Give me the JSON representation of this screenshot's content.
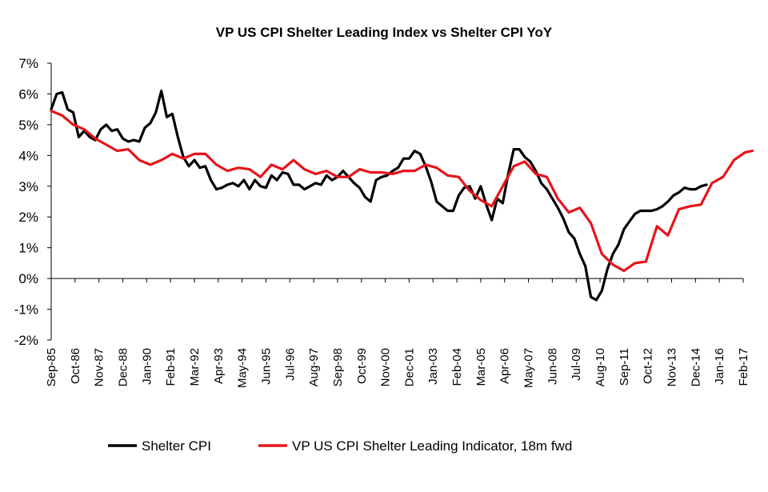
{
  "chart_data": {
    "type": "line",
    "title": "VP US CPI Shelter Leading Index vs Shelter CPI YoY",
    "xlabel": "",
    "ylabel": "",
    "ylim": [
      -2,
      7
    ],
    "y_unit": "%",
    "yticks": [
      "7%",
      "6%",
      "5%",
      "4%",
      "3%",
      "2%",
      "1%",
      "0%",
      "-1%",
      "-2%"
    ],
    "ytick_values": [
      7,
      6,
      5,
      4,
      3,
      2,
      1,
      0,
      -1,
      -2
    ],
    "x_start": "1985-09",
    "x_end": "2017-02",
    "xtick_labels": [
      "Sep-85",
      "Oct-86",
      "Nov-87",
      "Dec-88",
      "Jan-90",
      "Feb-91",
      "Mar-92",
      "Apr-93",
      "May-94",
      "Jun-95",
      "Jul-96",
      "Aug-97",
      "Sep-98",
      "Oct-99",
      "Nov-00",
      "Dec-01",
      "Jan-03",
      "Feb-04",
      "Mar-05",
      "Apr-06",
      "May-07",
      "Jun-08",
      "Jul-09",
      "Aug-10",
      "Sep-11",
      "Oct-12",
      "Nov-13",
      "Dec-14",
      "Jan-16",
      "Feb-17"
    ],
    "legend_placement": "bottom",
    "grid": false,
    "series": [
      {
        "name": "Shelter CPI",
        "color": "#000000",
        "points": [
          [
            "1985-09",
            5.5
          ],
          [
            "1985-12",
            6.0
          ],
          [
            "1986-03",
            6.05
          ],
          [
            "1986-06",
            5.5
          ],
          [
            "1986-09",
            5.4
          ],
          [
            "1986-12",
            4.6
          ],
          [
            "1987-03",
            4.8
          ],
          [
            "1987-06",
            4.6
          ],
          [
            "1987-09",
            4.5
          ],
          [
            "1987-12",
            4.85
          ],
          [
            "1988-03",
            5.0
          ],
          [
            "1988-06",
            4.8
          ],
          [
            "1988-09",
            4.85
          ],
          [
            "1988-12",
            4.55
          ],
          [
            "1989-03",
            4.45
          ],
          [
            "1989-06",
            4.5
          ],
          [
            "1989-09",
            4.45
          ],
          [
            "1989-12",
            4.9
          ],
          [
            "1990-03",
            5.05
          ],
          [
            "1990-06",
            5.4
          ],
          [
            "1990-09",
            6.1
          ],
          [
            "1990-12",
            5.25
          ],
          [
            "1991-03",
            5.35
          ],
          [
            "1991-06",
            4.6
          ],
          [
            "1991-09",
            3.95
          ],
          [
            "1991-12",
            3.65
          ],
          [
            "1992-03",
            3.85
          ],
          [
            "1992-06",
            3.6
          ],
          [
            "1992-09",
            3.65
          ],
          [
            "1992-12",
            3.2
          ],
          [
            "1993-03",
            2.9
          ],
          [
            "1993-06",
            2.95
          ],
          [
            "1993-09",
            3.05
          ],
          [
            "1993-12",
            3.1
          ],
          [
            "1994-03",
            3.0
          ],
          [
            "1994-06",
            3.2
          ],
          [
            "1994-09",
            2.9
          ],
          [
            "1994-12",
            3.2
          ],
          [
            "1995-03",
            3.0
          ],
          [
            "1995-06",
            2.95
          ],
          [
            "1995-09",
            3.35
          ],
          [
            "1995-12",
            3.2
          ],
          [
            "1996-03",
            3.45
          ],
          [
            "1996-06",
            3.4
          ],
          [
            "1996-09",
            3.05
          ],
          [
            "1996-12",
            3.05
          ],
          [
            "1997-03",
            2.9
          ],
          [
            "1997-06",
            3.0
          ],
          [
            "1997-09",
            3.1
          ],
          [
            "1997-12",
            3.05
          ],
          [
            "1998-03",
            3.35
          ],
          [
            "1998-06",
            3.2
          ],
          [
            "1998-09",
            3.3
          ],
          [
            "1998-12",
            3.5
          ],
          [
            "1999-03",
            3.3
          ],
          [
            "1999-06",
            3.1
          ],
          [
            "1999-09",
            2.95
          ],
          [
            "1999-12",
            2.65
          ],
          [
            "2000-03",
            2.5
          ],
          [
            "2000-06",
            3.2
          ],
          [
            "2000-09",
            3.3
          ],
          [
            "2000-12",
            3.35
          ],
          [
            "2001-03",
            3.5
          ],
          [
            "2001-06",
            3.6
          ],
          [
            "2001-09",
            3.9
          ],
          [
            "2001-12",
            3.9
          ],
          [
            "2002-03",
            4.15
          ],
          [
            "2002-06",
            4.05
          ],
          [
            "2002-09",
            3.65
          ],
          [
            "2002-12",
            3.15
          ],
          [
            "2003-03",
            2.5
          ],
          [
            "2003-06",
            2.35
          ],
          [
            "2003-09",
            2.2
          ],
          [
            "2003-12",
            2.2
          ],
          [
            "2004-03",
            2.7
          ],
          [
            "2004-06",
            2.95
          ],
          [
            "2004-09",
            3.0
          ],
          [
            "2004-12",
            2.6
          ],
          [
            "2005-03",
            3.0
          ],
          [
            "2005-06",
            2.4
          ],
          [
            "2005-09",
            1.9
          ],
          [
            "2005-12",
            2.6
          ],
          [
            "2006-03",
            2.45
          ],
          [
            "2006-06",
            3.4
          ],
          [
            "2006-09",
            4.2
          ],
          [
            "2006-12",
            4.2
          ],
          [
            "2007-03",
            3.95
          ],
          [
            "2007-06",
            3.8
          ],
          [
            "2007-09",
            3.5
          ],
          [
            "2007-12",
            3.1
          ],
          [
            "2008-03",
            2.9
          ],
          [
            "2008-06",
            2.6
          ],
          [
            "2008-09",
            2.3
          ],
          [
            "2008-12",
            1.95
          ],
          [
            "2009-03",
            1.5
          ],
          [
            "2009-06",
            1.3
          ],
          [
            "2009-09",
            0.8
          ],
          [
            "2009-12",
            0.4
          ],
          [
            "2010-03",
            -0.6
          ],
          [
            "2010-06",
            -0.7
          ],
          [
            "2010-09",
            -0.4
          ],
          [
            "2010-12",
            0.3
          ],
          [
            "2011-03",
            0.8
          ],
          [
            "2011-06",
            1.1
          ],
          [
            "2011-09",
            1.6
          ],
          [
            "2011-12",
            1.85
          ],
          [
            "2012-03",
            2.1
          ],
          [
            "2012-06",
            2.2
          ],
          [
            "2012-09",
            2.2
          ],
          [
            "2012-12",
            2.2
          ],
          [
            "2013-03",
            2.25
          ],
          [
            "2013-06",
            2.35
          ],
          [
            "2013-09",
            2.5
          ],
          [
            "2013-12",
            2.7
          ],
          [
            "2014-03",
            2.8
          ],
          [
            "2014-06",
            2.95
          ],
          [
            "2014-09",
            2.9
          ],
          [
            "2014-12",
            2.9
          ],
          [
            "2015-03",
            3.0
          ],
          [
            "2015-06",
            3.05
          ]
        ]
      },
      {
        "name": "VP US CPI Shelter Leading Indicator, 18m fwd",
        "color": "#e8141b",
        "points": [
          [
            "1985-09",
            5.45
          ],
          [
            "1986-03",
            5.3
          ],
          [
            "1986-09",
            5.0
          ],
          [
            "1987-03",
            4.85
          ],
          [
            "1987-09",
            4.55
          ],
          [
            "1988-03",
            4.35
          ],
          [
            "1988-09",
            4.15
          ],
          [
            "1989-03",
            4.2
          ],
          [
            "1989-09",
            3.85
          ],
          [
            "1990-03",
            3.7
          ],
          [
            "1990-09",
            3.85
          ],
          [
            "1991-03",
            4.05
          ],
          [
            "1991-09",
            3.9
          ],
          [
            "1992-03",
            4.05
          ],
          [
            "1992-09",
            4.05
          ],
          [
            "1993-03",
            3.7
          ],
          [
            "1993-09",
            3.5
          ],
          [
            "1994-03",
            3.6
          ],
          [
            "1994-09",
            3.55
          ],
          [
            "1995-03",
            3.3
          ],
          [
            "1995-09",
            3.7
          ],
          [
            "1996-03",
            3.55
          ],
          [
            "1996-09",
            3.85
          ],
          [
            "1997-03",
            3.55
          ],
          [
            "1997-09",
            3.4
          ],
          [
            "1998-03",
            3.5
          ],
          [
            "1998-09",
            3.3
          ],
          [
            "1999-03",
            3.3
          ],
          [
            "1999-09",
            3.55
          ],
          [
            "2000-03",
            3.45
          ],
          [
            "2000-09",
            3.45
          ],
          [
            "2001-03",
            3.4
          ],
          [
            "2001-09",
            3.5
          ],
          [
            "2002-03",
            3.5
          ],
          [
            "2002-09",
            3.7
          ],
          [
            "2003-03",
            3.6
          ],
          [
            "2003-09",
            3.35
          ],
          [
            "2004-03",
            3.3
          ],
          [
            "2004-09",
            2.85
          ],
          [
            "2005-03",
            2.55
          ],
          [
            "2005-09",
            2.35
          ],
          [
            "2006-03",
            3.0
          ],
          [
            "2006-09",
            3.65
          ],
          [
            "2007-03",
            3.8
          ],
          [
            "2007-09",
            3.4
          ],
          [
            "2008-03",
            3.3
          ],
          [
            "2008-09",
            2.6
          ],
          [
            "2009-03",
            2.15
          ],
          [
            "2009-09",
            2.3
          ],
          [
            "2010-03",
            1.8
          ],
          [
            "2010-09",
            0.8
          ],
          [
            "2011-03",
            0.45
          ],
          [
            "2011-09",
            0.25
          ],
          [
            "2012-03",
            0.5
          ],
          [
            "2012-09",
            0.55
          ],
          [
            "2013-03",
            1.7
          ],
          [
            "2013-09",
            1.4
          ],
          [
            "2014-03",
            2.25
          ],
          [
            "2014-09",
            2.35
          ],
          [
            "2015-03",
            2.4
          ],
          [
            "2015-09",
            3.1
          ],
          [
            "2016-03",
            3.3
          ],
          [
            "2016-09",
            3.85
          ],
          [
            "2017-03",
            4.1
          ],
          [
            "2017-07",
            4.15
          ]
        ]
      }
    ]
  }
}
